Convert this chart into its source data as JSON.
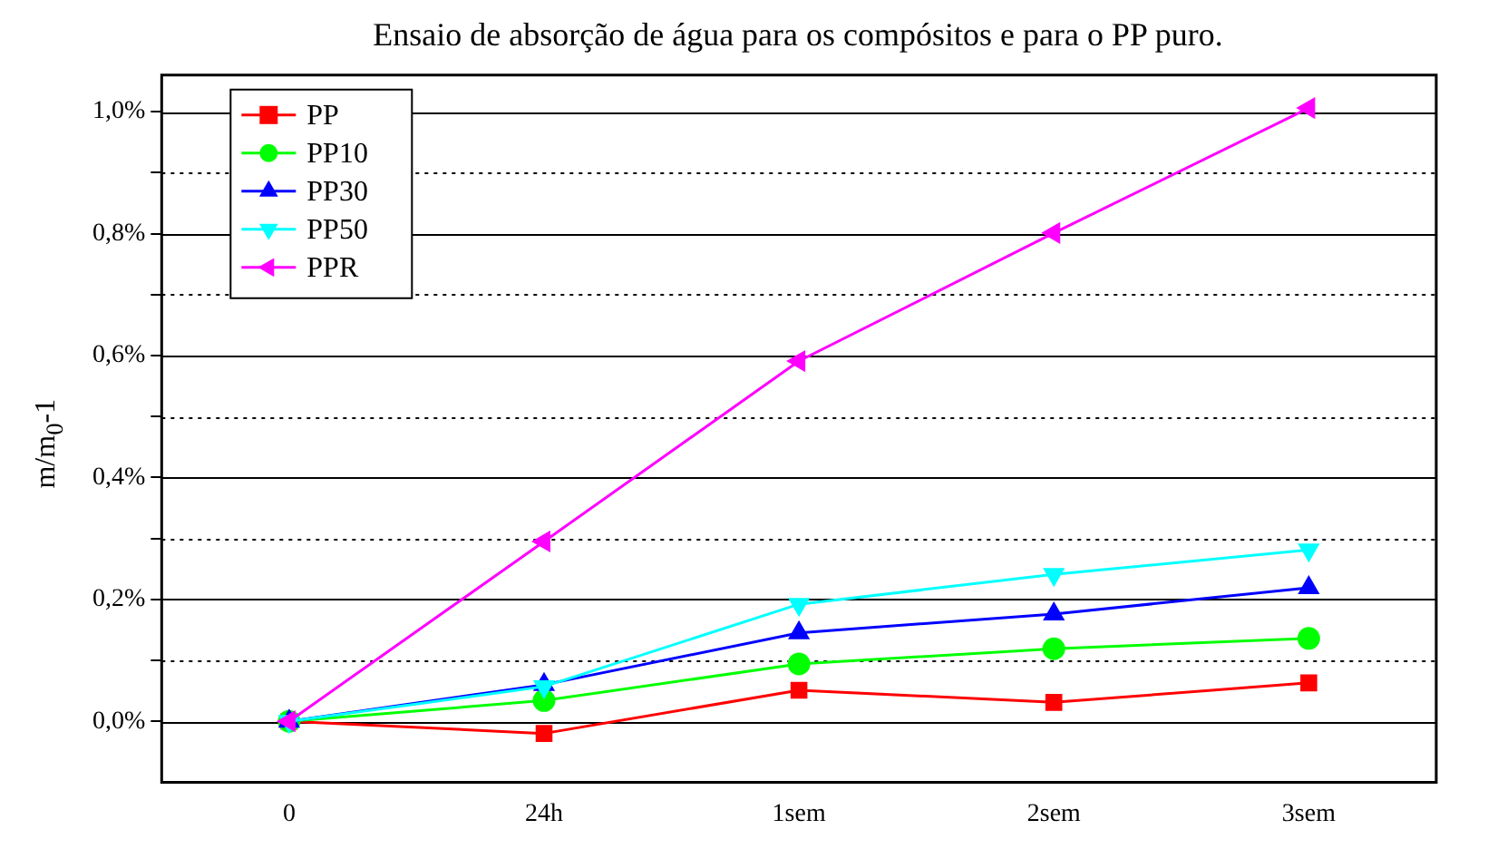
{
  "chart_data": {
    "type": "line",
    "title": "Ensaio de absorção de água para os compósitos e para o PP puro.",
    "ylabel": "m/m$_{0}$-1",
    "categories": [
      "0",
      "24h",
      "1sem",
      "2sem",
      "3sem"
    ],
    "series": [
      {
        "name": "PP",
        "color": "#ff0000",
        "marker": "square",
        "values": [
          0,
          -0.02,
          0.051,
          0.031,
          0.063
        ]
      },
      {
        "name": "PP10",
        "color": "#00ff00",
        "marker": "circle",
        "values": [
          0,
          0.034,
          0.094,
          0.119,
          0.136
        ]
      },
      {
        "name": "PP30",
        "color": "#0000ff",
        "marker": "triangle",
        "values": [
          0,
          0.06,
          0.145,
          0.176,
          0.219
        ]
      },
      {
        "name": "PP50",
        "color": "#00ffff",
        "marker": "triangle-down",
        "values": [
          0,
          0.057,
          0.192,
          0.241,
          0.281
        ]
      },
      {
        "name": "PPR",
        "color": "#ff00ff",
        "marker": "triangle-left",
        "values": [
          0,
          0.295,
          0.591,
          0.801,
          1.006
        ]
      }
    ],
    "ylim": [
      -0.1,
      1.06
    ],
    "yticks": [
      {
        "value": 0,
        "label": "0,0%"
      },
      {
        "value": 0.1,
        "label": null
      },
      {
        "value": 0.2,
        "label": "0,2%"
      },
      {
        "value": 0.3,
        "label": null
      },
      {
        "value": 0.4,
        "label": "0,4%"
      },
      {
        "value": 0.5,
        "label": null
      },
      {
        "value": 0.6,
        "label": "0,6%"
      },
      {
        "value": 0.7,
        "label": null
      },
      {
        "value": 0.8,
        "label": "0,8%"
      },
      {
        "value": 0.9,
        "label": null
      },
      {
        "value": 1.0,
        "label": "1,0%"
      }
    ],
    "grid": "y",
    "legend": "top left",
    "line_style": "solid"
  }
}
